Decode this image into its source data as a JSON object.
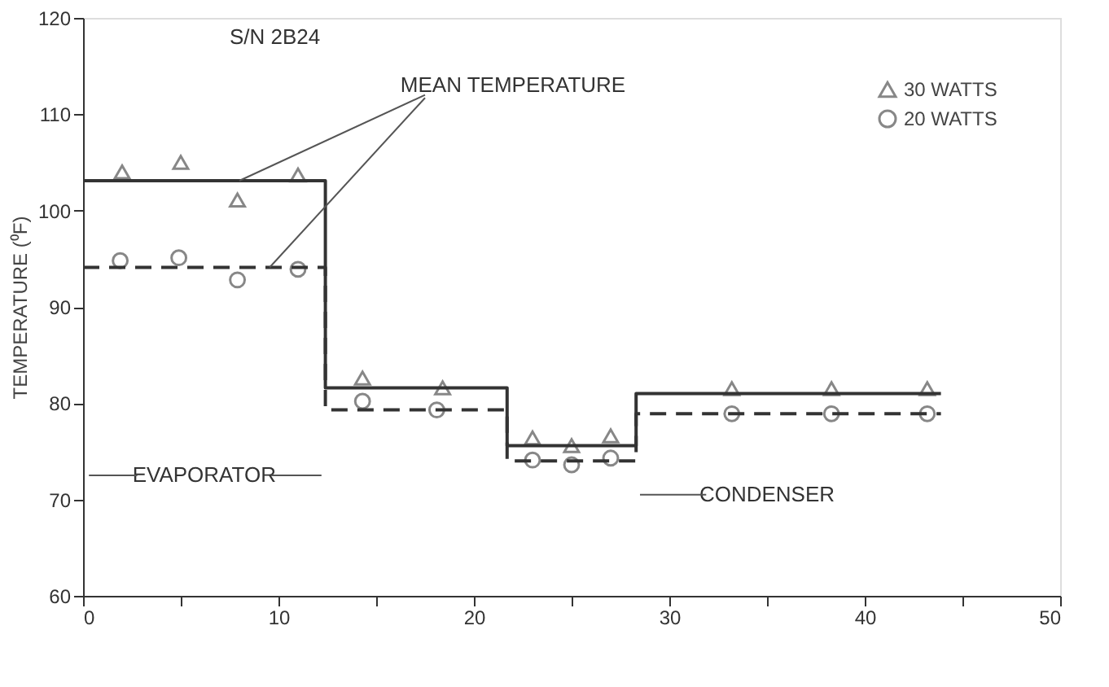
{
  "chart_data": {
    "type": "scatter",
    "ylabel": "TEMPERATURE (⁰F)",
    "xlim": [
      0,
      50
    ],
    "ylim": [
      60,
      120
    ],
    "xticks": [
      0,
      {
        "value": 5,
        "label": null
      },
      10,
      {
        "value": 15,
        "label": null
      },
      20,
      {
        "value": 25,
        "label": null
      },
      30,
      {
        "value": 35,
        "label": null
      },
      40,
      {
        "value": 45,
        "label": null
      },
      50
    ],
    "yticks": [
      60,
      70,
      80,
      90,
      100,
      110,
      120
    ],
    "grid": false,
    "legend": "top right",
    "series": [
      {
        "name": "30 WATTS",
        "marker": "triangle",
        "color": "#555555",
        "x": [
          2.0,
          5.0,
          7.9,
          11.0,
          14.3,
          18.4,
          23.0,
          25.0,
          27.0,
          33.2,
          38.3,
          43.2
        ],
        "values": [
          104.0,
          105.0,
          101.1,
          103.7,
          82.6,
          81.6,
          76.4,
          75.6,
          76.6,
          81.5,
          81.5,
          81.5
        ]
      },
      {
        "name": "20 WATTS",
        "marker": "circle",
        "color": "#555555",
        "x": [
          1.9,
          4.9,
          7.9,
          11.0,
          14.3,
          18.1,
          23.0,
          25.0,
          27.0,
          33.2,
          38.3,
          43.2
        ],
        "values": [
          94.8,
          95.1,
          92.8,
          93.9,
          80.2,
          79.3,
          74.1,
          73.6,
          74.3,
          78.9,
          78.9,
          78.9
        ]
      },
      {
        "type": "step",
        "line_style": "solid",
        "color": "#333333",
        "x": [
          0,
          12.4,
          21.7,
          28.3,
          43.9
        ],
        "values": [
          103.1,
          81.6,
          75.6,
          81.0,
          81.0
        ]
      },
      {
        "type": "step",
        "line_style": "dashed",
        "color": "#333333",
        "x": [
          0,
          12.4,
          21.7,
          28.3,
          43.9
        ],
        "values": [
          94.1,
          79.3,
          74.0,
          78.9,
          78.9
        ]
      }
    ],
    "annotations": [
      "S/N 2B24",
      {
        "text": "MEAN TEMPERATURE",
        "x": 8,
        "y": 103.1
      },
      "EVAPORATOR",
      "CONDENSER"
    ]
  }
}
